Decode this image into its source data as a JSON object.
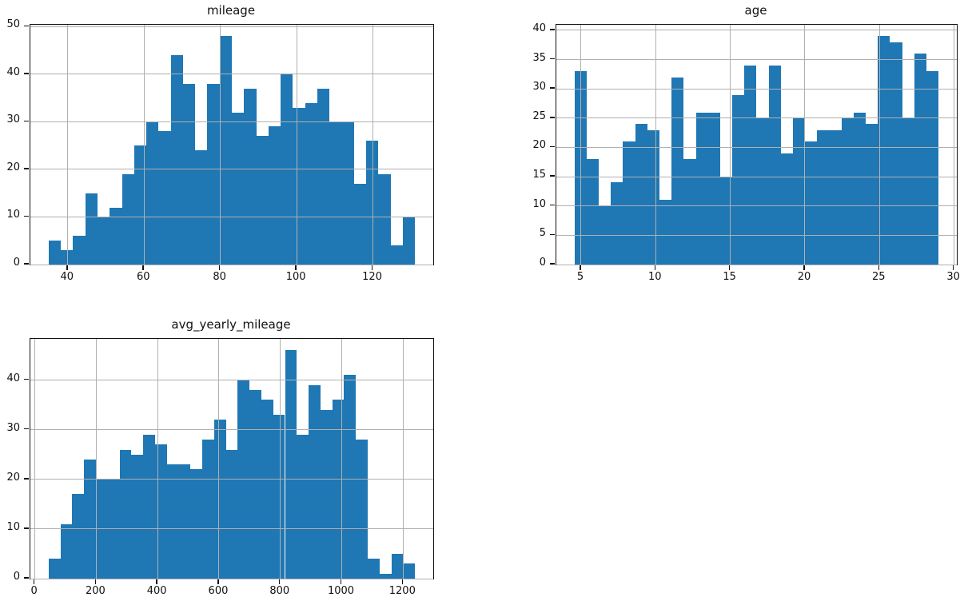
{
  "figure": {
    "background": "#ffffff",
    "bar_color": "#1f77b4",
    "grid_color": "#b0b0b0",
    "spine_color": "#111111"
  },
  "chart_data": [
    {
      "type": "bar",
      "subtype": "histogram",
      "title": "mileage",
      "xlabel": "",
      "ylabel": "",
      "bin_start": 35.0,
      "bin_width": 3.2,
      "values": [
        5,
        3,
        6,
        15,
        10,
        12,
        19,
        25,
        30,
        28,
        44,
        38,
        24,
        38,
        48,
        32,
        37,
        27,
        29,
        40,
        33,
        34,
        37,
        30,
        30,
        17,
        26,
        19,
        4,
        10
      ],
      "xlim": [
        30.2,
        135.8
      ],
      "ylim": [
        0,
        50.4
      ],
      "xticks": [
        40,
        60,
        80,
        100,
        120
      ],
      "yticks": [
        0,
        10,
        20,
        30,
        40,
        50
      ],
      "grid": true,
      "legend": null
    },
    {
      "type": "bar",
      "subtype": "histogram",
      "title": "age",
      "xlabel": "",
      "ylabel": "",
      "bin_start": 4.56,
      "bin_width": 0.8133,
      "values": [
        33,
        18,
        10,
        14,
        21,
        24,
        23,
        11,
        32,
        18,
        26,
        26,
        15,
        29,
        34,
        25,
        34,
        19,
        25,
        21,
        23,
        23,
        25,
        26,
        24,
        39,
        38,
        25,
        36,
        33
      ],
      "xlim": [
        3.34,
        30.18
      ],
      "ylim": [
        0,
        40.95
      ],
      "xticks": [
        5,
        10,
        15,
        20,
        25,
        30
      ],
      "yticks": [
        0,
        5,
        10,
        15,
        20,
        25,
        30,
        35,
        40
      ],
      "grid": true,
      "legend": null
    },
    {
      "type": "bar",
      "subtype": "histogram",
      "title": "avg_yearly_mileage",
      "xlabel": "",
      "ylabel": "",
      "bin_start": 45.0,
      "bin_width": 38.5,
      "values": [
        4,
        11,
        17,
        24,
        20,
        20,
        26,
        25,
        29,
        27,
        23,
        23,
        22,
        28,
        32,
        26,
        40,
        38,
        36,
        33,
        46,
        29,
        39,
        34,
        36,
        41,
        28,
        4,
        1,
        5,
        3
      ],
      "xlim": [
        -14.7,
        1298.2
      ],
      "ylim": [
        0,
        48.3
      ],
      "xticks": [
        0,
        200,
        400,
        600,
        800,
        1000,
        1200
      ],
      "yticks": [
        0,
        10,
        20,
        30,
        40
      ],
      "grid": true,
      "legend": null
    }
  ]
}
